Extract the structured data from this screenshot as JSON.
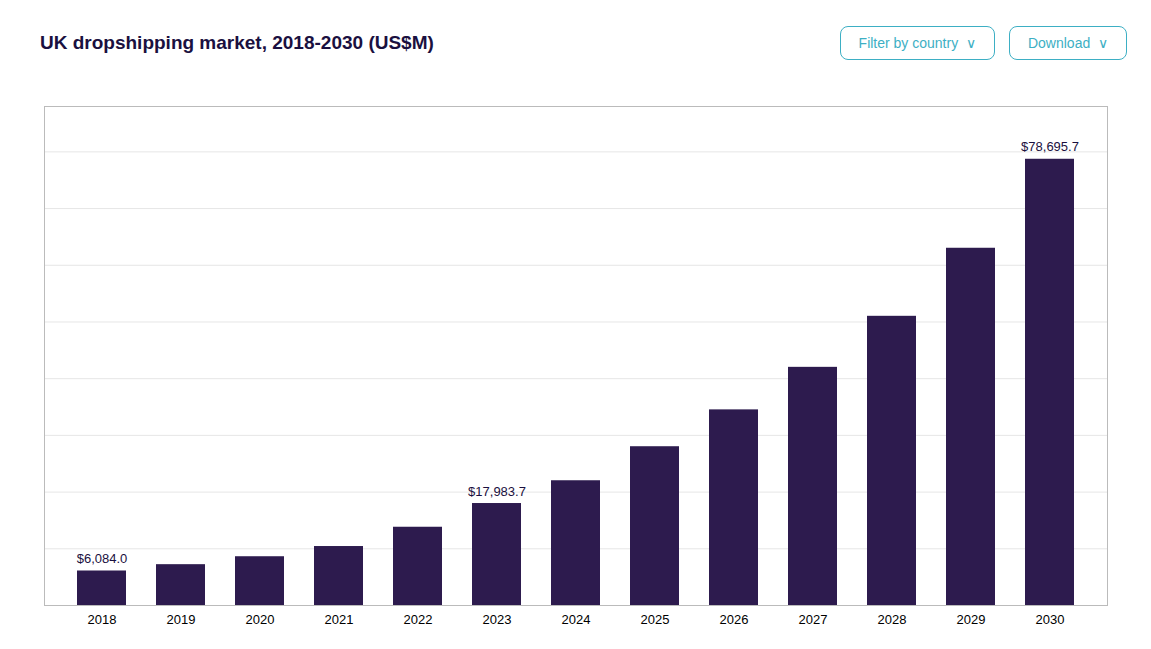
{
  "chart_data": {
    "type": "bar",
    "title": "UK dropshipping market, 2018-2030 (US$M)",
    "categories": [
      "2018",
      "2019",
      "2020",
      "2021",
      "2022",
      "2023",
      "2024",
      "2025",
      "2026",
      "2027",
      "2028",
      "2029",
      "2030"
    ],
    "values": [
      6084.0,
      7200.0,
      8600.0,
      10400.0,
      13800.0,
      17983.7,
      22000.0,
      28000.0,
      34500.0,
      42000.0,
      51000.0,
      63000.0,
      78695.7
    ],
    "value_labels": [
      "$6,084.0",
      null,
      null,
      null,
      null,
      "$17,983.7",
      null,
      null,
      null,
      null,
      null,
      null,
      "$78,695.7"
    ],
    "color": "#2d1b4e",
    "ylim": [
      0,
      88000
    ],
    "yticks": [
      0,
      10000,
      20000,
      30000,
      40000,
      50000,
      60000,
      70000,
      80000
    ],
    "grid": true,
    "tick_labels": "x",
    "annotations": [
      {
        "text": "Filter by country  ∨",
        "color": "#3dafc4"
      },
      {
        "text": "Download  ∨",
        "color": "#3dafc4"
      }
    ]
  }
}
